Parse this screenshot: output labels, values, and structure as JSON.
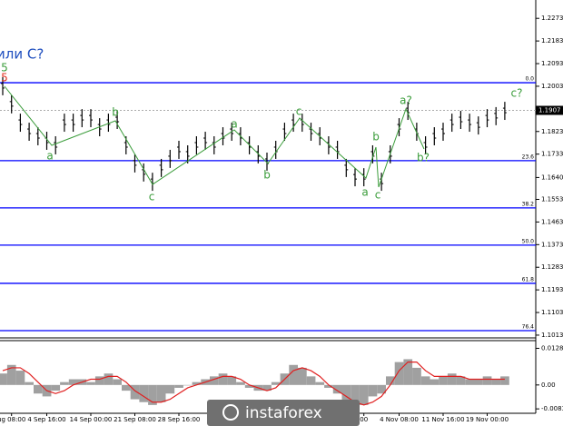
{
  "chart_data": [
    {
      "type": "hilo",
      "color": "#000000",
      "current_price": 1.1907,
      "level_color": "#0000ff",
      "wave_color": "#3a9c3a",
      "ylim": [
        1.1002,
        1.2346
      ],
      "yticks": [
        1.2273,
        1.2183,
        1.2093,
        1.2003,
        1.1823,
        1.1733,
        {
          "value": 1.164,
          "label": "1.1640"
        },
        1.1553,
        1.1463,
        1.1373,
        1.1283,
        1.1193,
        1.1103,
        1.1013
      ],
      "categories": [
        null,
        "ug 08:00",
        null,
        null,
        null,
        "4 Sep 16:00",
        null,
        null,
        null,
        null,
        "14 Sep 00:00",
        null,
        null,
        null,
        null,
        "21 Sep 08:00",
        null,
        null,
        null,
        null,
        "28 Sep 16:00",
        null,
        null,
        null,
        null,
        null,
        null,
        null,
        null,
        null,
        null,
        null,
        null,
        null,
        null,
        null,
        null,
        null,
        null,
        null,
        null,
        "00",
        null,
        null,
        null,
        "4 Nov 08:00",
        null,
        null,
        null,
        null,
        "11 Nov 16:00",
        null,
        null,
        null,
        null,
        "19 Nov 00:00",
        null,
        null
      ],
      "high": [
        1.2039,
        1.1967,
        1.1894,
        1.1858,
        1.184,
        1.1822,
        1.1804,
        1.1894,
        1.1894,
        1.1912,
        1.1912,
        1.1876,
        1.1894,
        1.1905,
        1.1804,
        1.1732,
        1.1696,
        1.1659,
        1.1714,
        1.175,
        1.1786,
        1.1768,
        1.1804,
        1.1822,
        1.1804,
        1.184,
        1.1858,
        1.184,
        1.1804,
        1.1768,
        1.1739,
        1.1786,
        1.1858,
        1.1894,
        1.1894,
        1.1858,
        1.184,
        1.1804,
        1.1786,
        1.1714,
        1.1677,
        1.1677,
        1.1768,
        1.1659,
        1.1768,
        1.1876,
        1.1941,
        1.1858,
        1.1804,
        1.184,
        1.1858,
        1.1894,
        1.1905,
        1.1894,
        1.1883,
        1.1912,
        1.192,
        1.1941
      ],
      "low": [
        1.1967,
        1.1895,
        1.1822,
        1.1786,
        1.1768,
        1.175,
        1.1732,
        1.1822,
        1.1822,
        1.184,
        1.184,
        1.1804,
        1.1822,
        1.1833,
        1.1732,
        1.166,
        1.1624,
        1.1587,
        1.1642,
        1.1678,
        1.1714,
        1.1696,
        1.1732,
        1.175,
        1.1732,
        1.1768,
        1.1786,
        1.1768,
        1.1732,
        1.1696,
        1.1667,
        1.1714,
        1.1786,
        1.1822,
        1.1822,
        1.1786,
        1.1768,
        1.1732,
        1.1714,
        1.1642,
        1.1605,
        1.1605,
        1.1696,
        1.1587,
        1.1696,
        1.1804,
        1.1869,
        1.1786,
        1.1732,
        1.1768,
        1.1786,
        1.1822,
        1.1833,
        1.1822,
        1.1811,
        1.184,
        1.1848,
        1.1869
      ],
      "levels": [
        {
          "value": 1.2017,
          "label": "0.0"
        },
        {
          "value": 1.1707,
          "label": "23.6"
        },
        {
          "value": 1.1519,
          "label": "38.2"
        },
        {
          "value": 1.1371,
          "label": "50.0"
        },
        {
          "value": 1.1219,
          "label": "61.8"
        },
        {
          "value": 1.1031,
          "label": "76.4"
        }
      ],
      "annotations": [
        {
          "text": "или С?",
          "color": "#1f4fbf"
        },
        {
          "text": "5",
          "color": "#3a9c3a"
        },
        {
          "text": "5",
          "color": "#e03020"
        },
        {
          "text": "a",
          "color": "#3a9c3a"
        },
        {
          "text": "b",
          "color": "#3a9c3a"
        },
        {
          "text": "c",
          "color": "#3a9c3a"
        },
        {
          "text": "a",
          "color": "#3a9c3a"
        },
        {
          "text": "b",
          "color": "#3a9c3a"
        },
        {
          "text": "c",
          "color": "#3a9c3a"
        },
        {
          "text": "a",
          "color": "#3a9c3a"
        },
        {
          "text": "b",
          "color": "#3a9c3a"
        },
        {
          "text": "c",
          "color": "#3a9c3a"
        },
        {
          "text": "a?",
          "color": "#3a9c3a"
        },
        {
          "text": "b?",
          "color": "#3a9c3a"
        },
        {
          "text": "c?",
          "color": "#3a9c3a"
        }
      ]
    },
    {
      "type": "macd",
      "color": "#a0a0a0",
      "signal_color": "#e02020",
      "ylim": [
        -0.0099,
        0.0155
      ],
      "yticks": [
        0.01281,
        {
          "value": 0,
          "label": "0.00"
        },
        -0.00836
      ],
      "values": [
        0.004,
        0.007,
        0.005,
        0.001,
        -0.003,
        -0.004,
        -0.002,
        0.001,
        0.002,
        0.002,
        0.001,
        0.003,
        0.004,
        0.002,
        -0.002,
        -0.005,
        -0.006,
        -0.007,
        -0.006,
        -0.003,
        -0.001,
        0.0,
        0.001,
        0.002,
        0.003,
        0.004,
        0.003,
        0.001,
        -0.001,
        -0.002,
        -0.002,
        0.001,
        0.004,
        0.007,
        0.006,
        0.003,
        0.001,
        -0.001,
        -0.003,
        -0.006,
        -0.007,
        -0.007,
        -0.004,
        -0.003,
        0.003,
        0.008,
        0.009,
        0.006,
        0.003,
        0.002,
        0.003,
        0.004,
        0.003,
        0.002,
        0.002,
        0.003,
        0.002,
        0.003
      ],
      "signal": [
        0.005,
        0.006,
        0.006,
        0.004,
        0.001,
        -0.002,
        -0.003,
        -0.002,
        0.0,
        0.001,
        0.002,
        0.002,
        0.003,
        0.003,
        0.001,
        -0.002,
        -0.004,
        -0.006,
        -0.006,
        -0.005,
        -0.003,
        -0.001,
        0.0,
        0.001,
        0.002,
        0.003,
        0.003,
        0.002,
        0.0,
        -0.001,
        -0.002,
        -0.001,
        0.002,
        0.005,
        0.006,
        0.005,
        0.003,
        0.0,
        -0.002,
        -0.004,
        -0.006,
        -0.007,
        -0.006,
        -0.004,
        0.0,
        0.005,
        0.008,
        0.008,
        0.005,
        0.003,
        0.003,
        0.003,
        0.003,
        0.002,
        0.002,
        0.002,
        0.002,
        0.002
      ]
    }
  ],
  "watermark": "instaforex"
}
